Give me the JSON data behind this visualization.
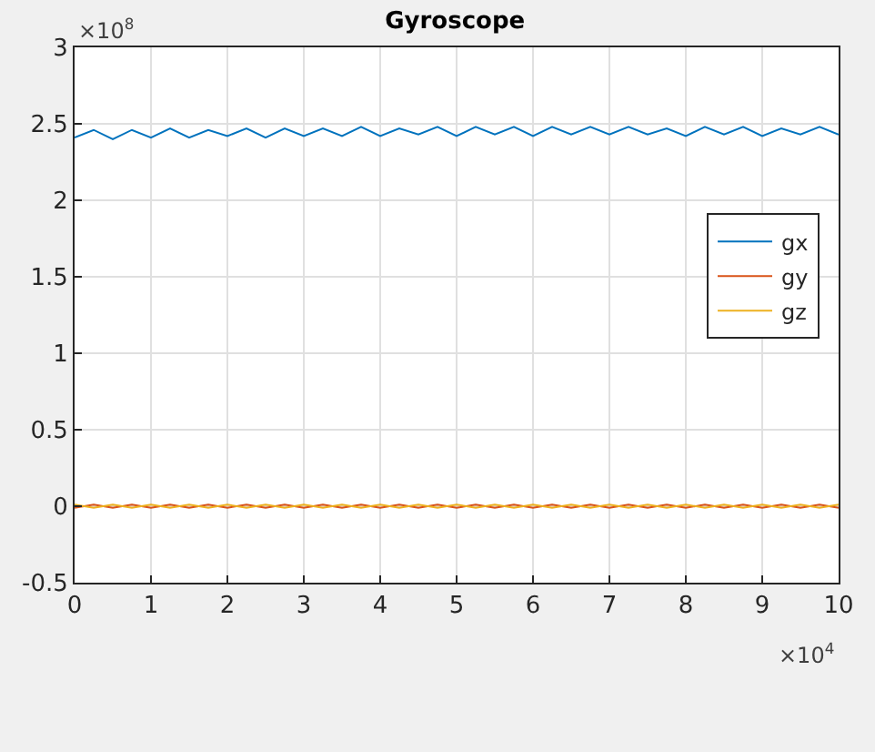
{
  "chart_data": {
    "type": "line",
    "title": "Gyroscope",
    "x": [
      0,
      0.25,
      0.5,
      0.75,
      1,
      1.25,
      1.5,
      1.75,
      2,
      2.25,
      2.5,
      2.75,
      3,
      3.25,
      3.5,
      3.75,
      4,
      4.25,
      4.5,
      4.75,
      5,
      5.25,
      5.5,
      5.75,
      6,
      6.25,
      6.5,
      6.75,
      7,
      7.25,
      7.5,
      7.75,
      8,
      8.25,
      8.5,
      8.75,
      9,
      9.25,
      9.5,
      9.75,
      10
    ],
    "series": [
      {
        "name": "gx",
        "color": "#0072bd",
        "values": [
          2.41,
          2.46,
          2.4,
          2.46,
          2.41,
          2.47,
          2.41,
          2.46,
          2.42,
          2.47,
          2.41,
          2.47,
          2.42,
          2.47,
          2.42,
          2.48,
          2.42,
          2.47,
          2.43,
          2.48,
          2.42,
          2.48,
          2.43,
          2.48,
          2.42,
          2.48,
          2.43,
          2.48,
          2.43,
          2.48,
          2.43,
          2.47,
          2.42,
          2.48,
          2.43,
          2.48,
          2.42,
          2.47,
          2.43,
          2.48,
          2.43
        ]
      },
      {
        "name": "gy",
        "color": "#d95319",
        "values": [
          -0.01,
          0.01,
          -0.01,
          0.01,
          -0.01,
          0.01,
          -0.01,
          0.01,
          -0.01,
          0.01,
          -0.01,
          0.01,
          -0.01,
          0.01,
          -0.01,
          0.01,
          -0.01,
          0.01,
          -0.01,
          0.01,
          -0.01,
          0.01,
          -0.01,
          0.01,
          -0.01,
          0.01,
          -0.01,
          0.01,
          -0.01,
          0.01,
          -0.01,
          0.01,
          -0.01,
          0.01,
          -0.01,
          0.01,
          -0.01,
          0.01,
          -0.01,
          0.01,
          -0.01
        ]
      },
      {
        "name": "gz",
        "color": "#edb120",
        "values": [
          0.01,
          -0.01,
          0.01,
          -0.01,
          0.01,
          -0.01,
          0.01,
          -0.01,
          0.01,
          -0.01,
          0.01,
          -0.01,
          0.01,
          -0.01,
          0.01,
          -0.01,
          0.01,
          -0.01,
          0.01,
          -0.01,
          0.01,
          -0.01,
          0.01,
          -0.01,
          0.01,
          -0.01,
          0.01,
          -0.01,
          0.01,
          -0.01,
          0.01,
          -0.01,
          0.01,
          -0.01,
          0.01,
          -0.01,
          0.01,
          -0.01,
          0.01,
          -0.01,
          0.01
        ]
      }
    ],
    "xlim": [
      0,
      10
    ],
    "xticks": [
      0,
      1,
      2,
      3,
      4,
      5,
      6,
      7,
      8,
      9,
      10
    ],
    "ylim": [
      -0.5,
      3
    ],
    "yticks": [
      -0.5,
      0,
      0.5,
      1,
      1.5,
      2,
      2.5,
      3
    ],
    "annotations": [
      "×10$^{8}$",
      "×10$^{4}$"
    ],
    "grid": true,
    "legend": "top right",
    "marker": "none",
    "line_style": "solid"
  }
}
